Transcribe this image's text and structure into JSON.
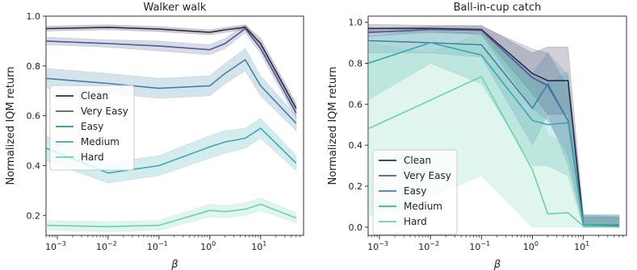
{
  "chart_data": [
    {
      "type": "line",
      "title": "Walker walk",
      "xlabel": "β",
      "ylabel": "Normalized IQM return",
      "xscale": "log",
      "xlim": [
        0.0006,
        70
      ],
      "ylim": [
        0.12,
        1.0
      ],
      "xticks": [
        0.001,
        0.01,
        0.1,
        1,
        10
      ],
      "xtick_labels": [
        "10^-3",
        "10^-2",
        "10^-1",
        "10^0",
        "10^1"
      ],
      "yticks": [
        0.2,
        0.4,
        0.6,
        0.8,
        1.0
      ],
      "ytick_labels": [
        "0.2",
        "0.4",
        "0.6",
        "0.8",
        "1.0"
      ],
      "legend": {
        "position": "center-left"
      },
      "x": [
        0.0006,
        0.01,
        0.1,
        1,
        2,
        5,
        10,
        50
      ],
      "series": [
        {
          "name": "Clean",
          "color": "#2e2b40",
          "values": [
            0.95,
            0.955,
            0.948,
            0.935,
            0.945,
            0.955,
            0.89,
            0.63
          ],
          "lower": [
            0.94,
            0.945,
            0.938,
            0.925,
            0.935,
            0.945,
            0.87,
            0.61
          ],
          "upper": [
            0.96,
            0.965,
            0.958,
            0.945,
            0.955,
            0.965,
            0.91,
            0.65
          ]
        },
        {
          "name": "Very Easy",
          "color": "#4e5a93",
          "values": [
            0.9,
            0.89,
            0.88,
            0.865,
            0.89,
            0.95,
            0.87,
            0.61
          ],
          "lower": [
            0.885,
            0.875,
            0.86,
            0.845,
            0.87,
            0.935,
            0.85,
            0.59
          ],
          "upper": [
            0.915,
            0.905,
            0.9,
            0.885,
            0.91,
            0.965,
            0.89,
            0.63
          ]
        },
        {
          "name": "Easy",
          "color": "#3f82a6",
          "values": [
            0.75,
            0.73,
            0.71,
            0.72,
            0.77,
            0.825,
            0.72,
            0.57
          ],
          "lower": [
            0.71,
            0.69,
            0.67,
            0.68,
            0.73,
            0.78,
            0.68,
            0.54
          ],
          "upper": [
            0.79,
            0.77,
            0.75,
            0.76,
            0.81,
            0.87,
            0.76,
            0.6
          ]
        },
        {
          "name": "Medium",
          "color": "#3ba8ad",
          "values": [
            0.47,
            0.37,
            0.4,
            0.475,
            0.495,
            0.51,
            0.55,
            0.41
          ],
          "lower": [
            0.42,
            0.33,
            0.36,
            0.43,
            0.45,
            0.47,
            0.51,
            0.38
          ],
          "upper": [
            0.52,
            0.41,
            0.44,
            0.52,
            0.54,
            0.55,
            0.59,
            0.44
          ]
        },
        {
          "name": "Hard",
          "color": "#6fd0ad",
          "values": [
            0.16,
            0.155,
            0.16,
            0.22,
            0.215,
            0.225,
            0.245,
            0.19
          ],
          "lower": [
            0.14,
            0.135,
            0.14,
            0.195,
            0.19,
            0.2,
            0.22,
            0.17
          ],
          "upper": [
            0.18,
            0.175,
            0.18,
            0.245,
            0.24,
            0.25,
            0.27,
            0.21
          ]
        }
      ]
    },
    {
      "type": "line",
      "title": "Ball-in-cup catch",
      "xlabel": "β",
      "ylabel": "Normalized IQM return",
      "xscale": "log",
      "xlim": [
        0.0006,
        70
      ],
      "ylim": [
        -0.04,
        1.03
      ],
      "xticks": [
        0.001,
        0.01,
        0.1,
        1,
        10
      ],
      "xtick_labels": [
        "10^-3",
        "10^-2",
        "10^-1",
        "10^0",
        "10^1"
      ],
      "yticks": [
        0.0,
        0.2,
        0.4,
        0.6,
        0.8,
        1.0
      ],
      "ytick_labels": [
        "0.0",
        "0.2",
        "0.4",
        "0.6",
        "0.8",
        "1.0"
      ],
      "legend": {
        "position": "lower-left"
      },
      "x": [
        0.0006,
        0.01,
        0.1,
        1,
        2,
        5,
        10,
        50
      ],
      "series": [
        {
          "name": "Clean",
          "color": "#2e2b40",
          "values": [
            0.97,
            0.97,
            0.965,
            0.75,
            0.715,
            0.715,
            0.01,
            0.01
          ],
          "lower": [
            0.95,
            0.955,
            0.945,
            0.65,
            0.55,
            0.55,
            0.0,
            0.0
          ],
          "upper": [
            0.99,
            0.985,
            0.985,
            0.85,
            0.88,
            0.88,
            0.05,
            0.05
          ]
        },
        {
          "name": "Very Easy",
          "color": "#4e5a93",
          "values": [
            0.95,
            0.965,
            0.96,
            0.73,
            0.69,
            0.52,
            0.01,
            0.01
          ],
          "lower": [
            0.93,
            0.95,
            0.94,
            0.58,
            0.52,
            0.35,
            0.0,
            0.0
          ],
          "upper": [
            0.97,
            0.98,
            0.98,
            0.87,
            0.85,
            0.68,
            0.06,
            0.06
          ]
        },
        {
          "name": "Easy",
          "color": "#3f82a6",
          "values": [
            0.91,
            0.9,
            0.89,
            0.58,
            0.7,
            0.52,
            0.01,
            0.01
          ],
          "lower": [
            0.85,
            0.85,
            0.83,
            0.4,
            0.55,
            0.3,
            0.0,
            0.0
          ],
          "upper": [
            0.96,
            0.95,
            0.95,
            0.75,
            0.85,
            0.74,
            0.06,
            0.06
          ]
        },
        {
          "name": "Medium",
          "color": "#3ba8ad",
          "values": [
            0.8,
            0.9,
            0.84,
            0.52,
            0.5,
            0.51,
            0.01,
            0.0
          ],
          "lower": [
            0.62,
            0.8,
            0.7,
            0.3,
            0.3,
            0.25,
            0.0,
            0.0
          ],
          "upper": [
            0.93,
            0.97,
            0.94,
            0.74,
            0.7,
            0.76,
            0.06,
            0.05
          ]
        },
        {
          "name": "Hard",
          "color": "#6fd0ad",
          "values": [
            0.48,
            0.62,
            0.735,
            0.28,
            0.065,
            0.07,
            0.005,
            0.0
          ],
          "lower": [
            0.05,
            0.15,
            0.25,
            0.0,
            0.0,
            0.0,
            0.0,
            0.0
          ],
          "upper": [
            0.9,
            0.85,
            0.95,
            0.7,
            0.45,
            0.4,
            0.04,
            0.03
          ]
        }
      ]
    }
  ]
}
